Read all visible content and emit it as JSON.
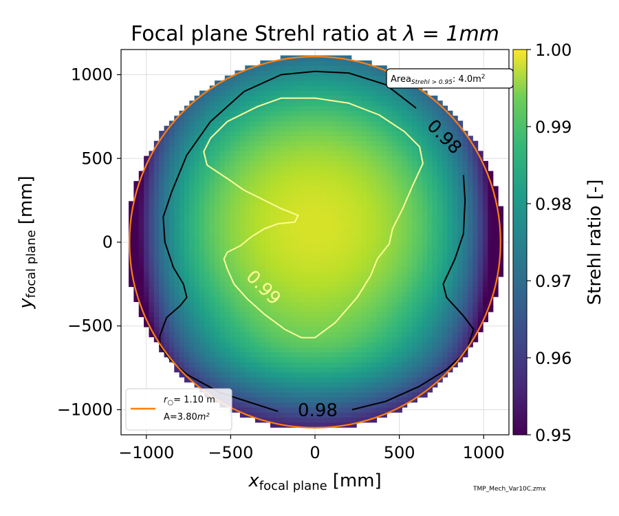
{
  "chart_data": {
    "type": "heatmap",
    "title_prefix": "Focal plane Strehl ratio at ",
    "title_math": "λ = 1mm",
    "xlabel_main": "x",
    "xlabel_sub": "focal plane",
    "xlabel_unit": "[mm]",
    "ylabel_main": "y",
    "ylabel_sub": "focal plane",
    "ylabel_unit": "[mm]",
    "xlim": [
      -1150,
      1150
    ],
    "ylim": [
      -1150,
      1150
    ],
    "xticks": [
      -1000,
      -500,
      0,
      500,
      1000
    ],
    "yticks": [
      -1000,
      -500,
      0,
      500,
      1000
    ],
    "xtick_labels": [
      "−1000",
      "−500",
      "0",
      "500",
      "1000"
    ],
    "ytick_labels": [
      "−1000",
      "−500",
      "0",
      "500",
      "1000"
    ],
    "grid": true,
    "colorbar": {
      "label": "Strehl ratio [-]",
      "range": [
        0.95,
        1.0
      ],
      "ticks": [
        0.95,
        0.96,
        0.97,
        0.98,
        0.99,
        1.0
      ],
      "tick_labels": [
        "0.95",
        "0.96",
        "0.97",
        "0.98",
        "0.99",
        "1.00"
      ],
      "colormap": "viridis"
    },
    "field_model": {
      "description": "Strehl ratio field over circular focal plane",
      "peak_value": 0.997,
      "peak_center_mm": [
        0,
        100
      ],
      "field_radius_mm": 1120
    },
    "contours": [
      {
        "level": 0.98,
        "color": "#000000",
        "labels": [
          "0.98",
          "0.98"
        ],
        "points": [
          [
            600,
            800
          ],
          [
            420,
            940
          ],
          [
            200,
            1010
          ],
          [
            0,
            1020
          ],
          [
            -200,
            1000
          ],
          [
            -420,
            900
          ],
          [
            -620,
            720
          ],
          [
            -760,
            520
          ],
          [
            -850,
            300
          ],
          [
            -900,
            150
          ],
          [
            -890,
            0
          ],
          [
            -840,
            -150
          ],
          [
            -780,
            -250
          ],
          [
            -760,
            -330
          ],
          [
            -800,
            -380
          ],
          [
            -880,
            -450
          ],
          [
            -920,
            -560
          ],
          [
            -920,
            -620
          ],
          [
            -860,
            -700
          ],
          [
            -760,
            -790
          ],
          [
            -560,
            -900
          ],
          [
            -220,
            -1010
          ]
        ]
      },
      {
        "level": 0.98,
        "color": "#000000",
        "points": [
          [
            220,
            -1000
          ],
          [
            420,
            -950
          ],
          [
            620,
            -860
          ],
          [
            780,
            -760
          ],
          [
            900,
            -650
          ],
          [
            940,
            -520
          ],
          [
            880,
            -440
          ],
          [
            780,
            -330
          ],
          [
            760,
            -250
          ],
          [
            830,
            -100
          ],
          [
            880,
            50
          ],
          [
            890,
            250
          ],
          [
            880,
            400
          ]
        ]
      },
      {
        "level": 0.99,
        "color": "#fdfd9a",
        "labels": [
          "0.99"
        ],
        "points": [
          [
            -520,
            -60
          ],
          [
            -440,
            -20
          ],
          [
            -380,
            30
          ],
          [
            -300,
            80
          ],
          [
            -220,
            110
          ],
          [
            -120,
            120
          ],
          [
            -100,
            160
          ],
          [
            -200,
            200
          ],
          [
            -300,
            250
          ],
          [
            -420,
            310
          ],
          [
            -520,
            380
          ],
          [
            -640,
            460
          ],
          [
            -660,
            540
          ],
          [
            -620,
            620
          ],
          [
            -520,
            720
          ],
          [
            -340,
            810
          ],
          [
            -200,
            860
          ],
          [
            0,
            860
          ],
          [
            200,
            830
          ],
          [
            380,
            760
          ],
          [
            530,
            660
          ],
          [
            620,
            570
          ],
          [
            640,
            470
          ],
          [
            580,
            340
          ],
          [
            520,
            200
          ],
          [
            460,
            80
          ],
          [
            440,
            -10
          ],
          [
            370,
            -100
          ],
          [
            330,
            -200
          ],
          [
            250,
            -330
          ],
          [
            120,
            -480
          ],
          [
            0,
            -570
          ],
          [
            -80,
            -570
          ],
          [
            -180,
            -520
          ],
          [
            -300,
            -430
          ],
          [
            -400,
            -340
          ],
          [
            -480,
            -250
          ],
          [
            -520,
            -160
          ],
          [
            -540,
            -100
          ]
        ]
      }
    ],
    "fit_circle": {
      "color": "#ff7f0e",
      "radius_mm": 1100,
      "legend_line1": "r",
      "legend_line1_sub": "○",
      "legend_line1_rest": "= 1.10 m",
      "legend_line2": "A=3.80",
      "legend_line2_unit": "m²"
    },
    "annotation": {
      "text_prefix": "Area",
      "text_sub": "Strehl > 0.95",
      "text_rest": ": 4.0m",
      "text_sup": "2"
    },
    "legend_placement": "lower-left",
    "footnote": "TMP_Mech_Var10C.zmx"
  }
}
